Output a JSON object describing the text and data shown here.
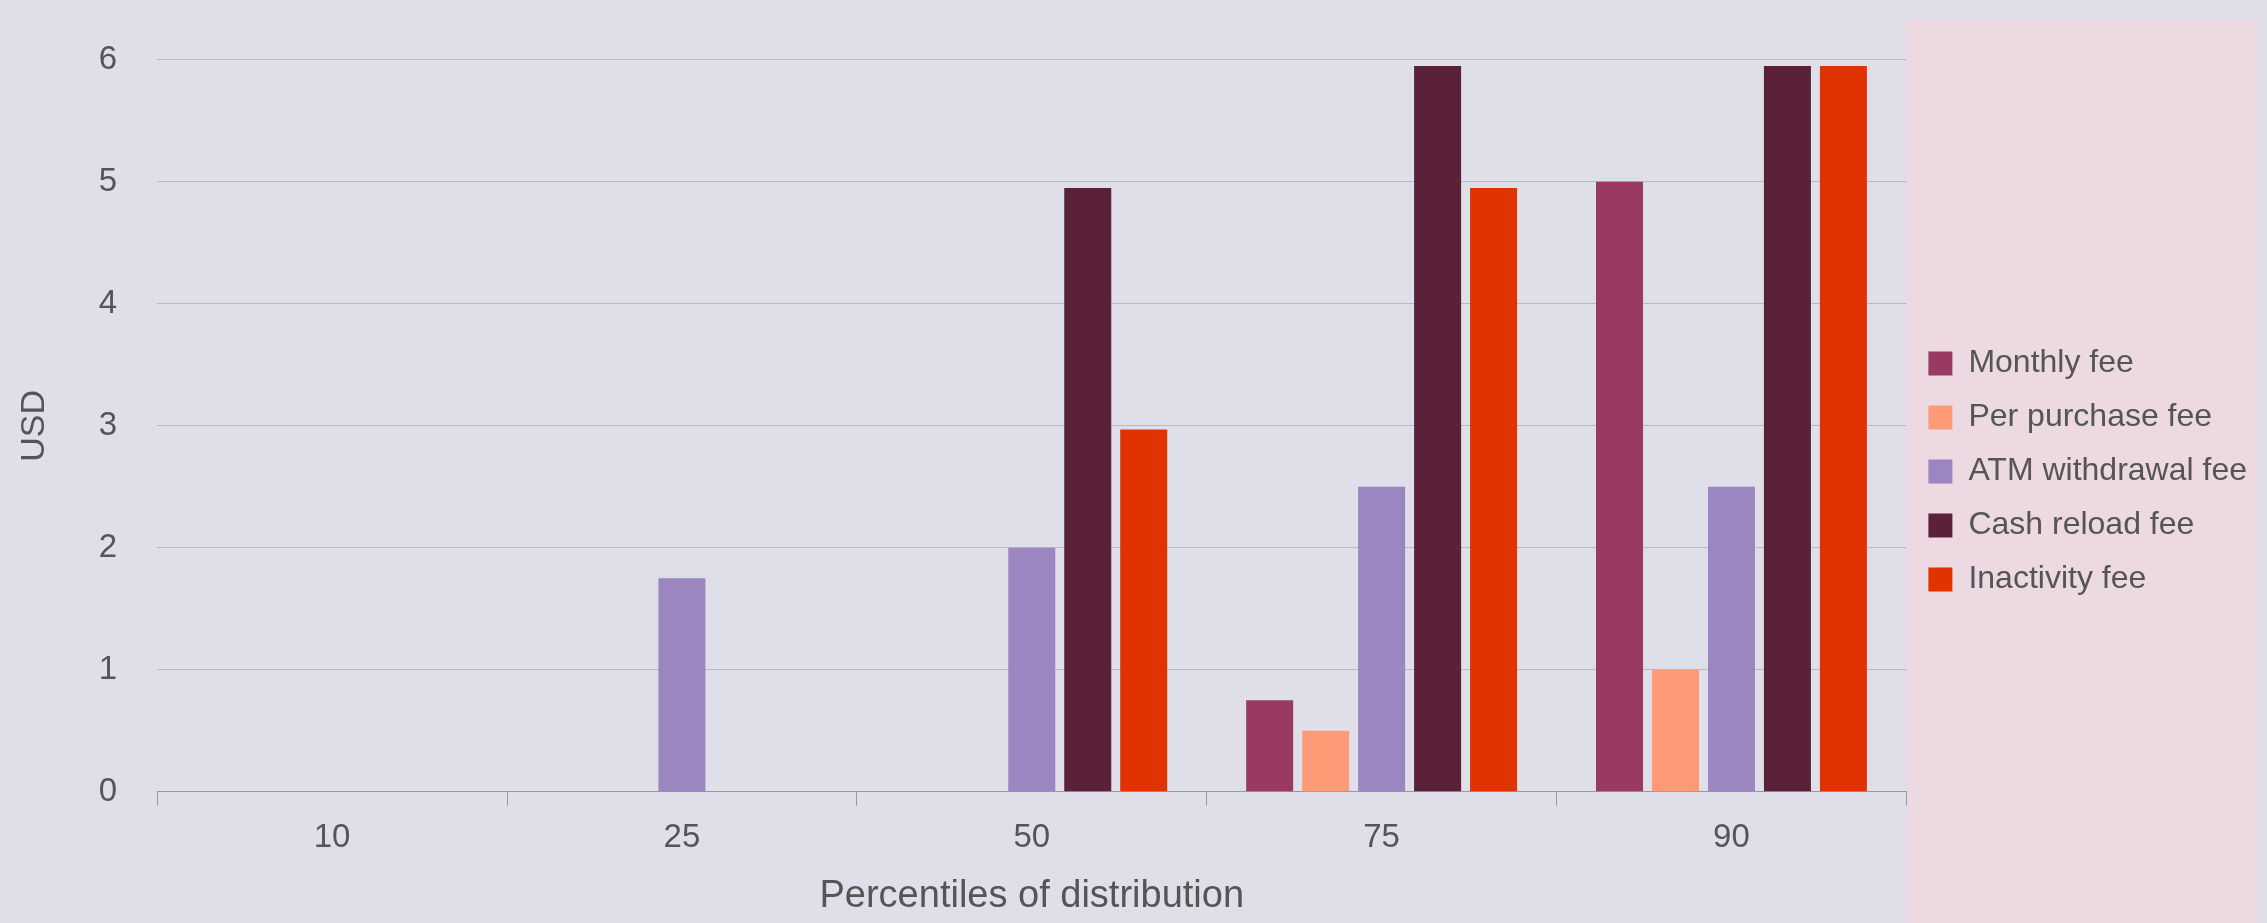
{
  "chart_data": {
    "type": "bar",
    "xlabel": "Percentiles of distribution",
    "ylabel": "USD",
    "categories": [
      "10",
      "25",
      "50",
      "75",
      "90"
    ],
    "series": [
      {
        "name": "Monthly fee",
        "color": "#983a62",
        "values": [
          0,
          0,
          0,
          0.75,
          5
        ]
      },
      {
        "name": "Per purchase fee",
        "color": "#ff9a77",
        "values": [
          0,
          0,
          0,
          0.5,
          1
        ]
      },
      {
        "name": "ATM withdrawal fee",
        "color": "#9b86c2",
        "values": [
          0,
          1.75,
          2,
          2.5,
          2.5
        ]
      },
      {
        "name": "Cash reload fee",
        "color": "#5a2139",
        "values": [
          0,
          0,
          4.95,
          5.95,
          5.95
        ]
      },
      {
        "name": "Inactivity fee",
        "color": "#e03300",
        "values": [
          0,
          0,
          2.97,
          4.95,
          5.95
        ]
      }
    ],
    "ylim": [
      0,
      6
    ],
    "yticks": [
      0,
      1,
      2,
      3,
      4,
      5,
      6
    ],
    "grid": "y",
    "legend": "right"
  }
}
